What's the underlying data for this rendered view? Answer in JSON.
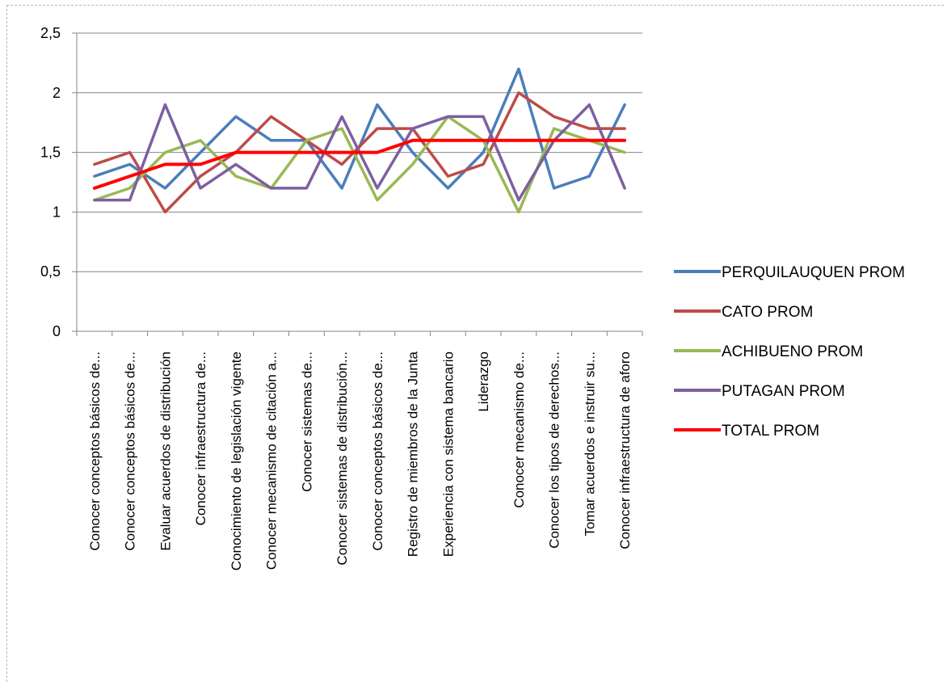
{
  "chart_data": {
    "type": "line",
    "title": "",
    "xlabel": "",
    "ylabel": "",
    "ylim": [
      0,
      2.5
    ],
    "yticks": [
      "0",
      "0,5",
      "1",
      "1,5",
      "2",
      "2,5"
    ],
    "grid": "horizontal",
    "legend_position": "right",
    "categories": [
      "Conocer conceptos básicos de...",
      "Conocer conceptos básicos de...",
      "Evaluar acuerdos de distribución",
      "Conocer infraestructura de...",
      "Conocimiento de legislación vigente",
      "Conocer mecanismo de citación a...",
      "Conocer sistemas de...",
      "Conocer sistemas de distribución...",
      "Conocer conceptos básicos de...",
      "Registro de miembros de la Junta",
      "Experiencia con sistema bancario",
      "Liderazgo",
      "Conocer mecanismo de...",
      "Conocer los tipos de derechos...",
      "Tomar acuerdos e instruir su...",
      "Conocer infraestructura de aforo"
    ],
    "series": [
      {
        "name": "PERQUILAUQUEN PROM",
        "color": "#4a7ebb",
        "values": [
          1.3,
          1.4,
          1.2,
          1.5,
          1.8,
          1.6,
          1.6,
          1.2,
          1.9,
          1.5,
          1.2,
          1.5,
          2.2,
          1.2,
          1.3,
          1.9
        ]
      },
      {
        "name": "CATO PROM",
        "color": "#be4b48",
        "values": [
          1.4,
          1.5,
          1.0,
          1.3,
          1.5,
          1.8,
          1.6,
          1.4,
          1.7,
          1.7,
          1.3,
          1.4,
          2.0,
          1.8,
          1.7,
          1.7
        ]
      },
      {
        "name": "ACHIBUENO PROM",
        "color": "#98b954",
        "values": [
          1.1,
          1.2,
          1.5,
          1.6,
          1.3,
          1.2,
          1.6,
          1.7,
          1.1,
          1.4,
          1.8,
          1.6,
          1.0,
          1.7,
          1.6,
          1.5
        ]
      },
      {
        "name": "PUTAGAN PROM",
        "color": "#7d5fa0",
        "values": [
          1.1,
          1.1,
          1.9,
          1.2,
          1.4,
          1.2,
          1.2,
          1.8,
          1.2,
          1.7,
          1.8,
          1.8,
          1.1,
          1.6,
          1.9,
          1.2
        ]
      },
      {
        "name": "TOTAL PROM",
        "color": "#ff0000",
        "values": [
          1.2,
          1.3,
          1.4,
          1.4,
          1.5,
          1.5,
          1.5,
          1.5,
          1.5,
          1.6,
          1.6,
          1.6,
          1.6,
          1.6,
          1.6,
          1.6
        ]
      }
    ]
  }
}
